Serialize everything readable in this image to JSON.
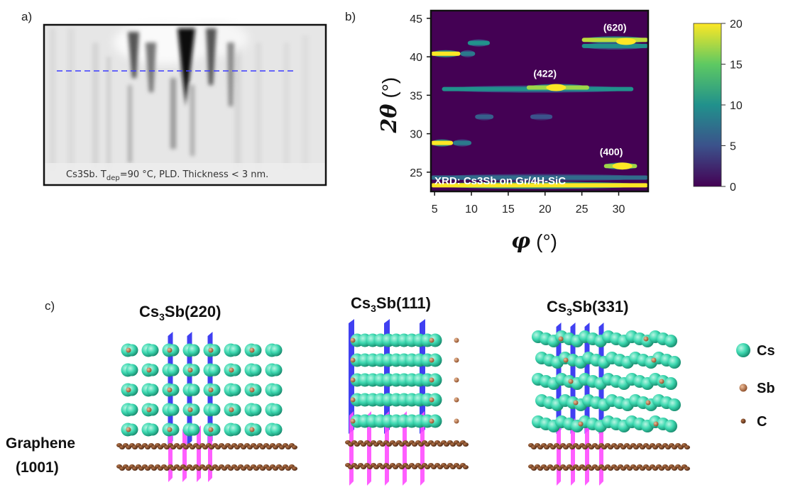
{
  "panels": {
    "a": {
      "label": "a)",
      "caption_main": "Cs3Sb. T",
      "caption_sub": "dep",
      "caption_rest": "=90 °C, PLD. Thickness < 3 nm."
    },
    "b": {
      "label": "b)"
    },
    "c": {
      "label": "c)"
    }
  },
  "chart_data": {
    "type": "heatmap",
    "title": "XRD: Cs3Sb on Gr/4H-SiC",
    "xlabel": "φ",
    "xunit": "(°)",
    "ylabel": "2θ",
    "yunit": "(°)",
    "xlim": [
      4.5,
      34
    ],
    "ylim": [
      22.5,
      46
    ],
    "xticks": [
      5,
      10,
      15,
      20,
      25,
      30
    ],
    "yticks": [
      25,
      30,
      35,
      40,
      45
    ],
    "colorbar": {
      "min": 0,
      "max": 20,
      "ticks": [
        0,
        5,
        10,
        15,
        20
      ],
      "colormap": "viridis"
    },
    "peaks": [
      {
        "label": "(620)",
        "phi": 31,
        "two_theta": 42,
        "intensity": 20
      },
      {
        "label": "(422)",
        "phi": 21.5,
        "two_theta": 36,
        "intensity": 20
      },
      {
        "label": "(400)",
        "phi": 30.5,
        "two_theta": 25.8,
        "intensity": 20
      }
    ],
    "features": [
      {
        "phi_min": 4.5,
        "phi_max": 8.5,
        "two_theta": 40.4,
        "intensity": 20
      },
      {
        "phi_min": 8.5,
        "phi_max": 10.5,
        "two_theta": 40.4,
        "intensity": 8
      },
      {
        "phi_min": 9.5,
        "phi_max": 12.5,
        "two_theta": 41.8,
        "intensity": 10
      },
      {
        "phi_min": 6,
        "phi_max": 32,
        "two_theta": 35.8,
        "intensity": 10
      },
      {
        "phi_min": 17.5,
        "phi_max": 26,
        "two_theta": 36,
        "intensity": 17
      },
      {
        "phi_min": 10.5,
        "phi_max": 13,
        "two_theta": 32.2,
        "intensity": 6
      },
      {
        "phi_min": 18,
        "phi_max": 21,
        "two_theta": 32.2,
        "intensity": 5
      },
      {
        "phi_min": 4.5,
        "phi_max": 7.5,
        "two_theta": 28.8,
        "intensity": 20
      },
      {
        "phi_min": 7.5,
        "phi_max": 10,
        "two_theta": 28.8,
        "intensity": 8
      },
      {
        "phi_min": 28,
        "phi_max": 32.5,
        "two_theta": 25.8,
        "intensity": 17
      },
      {
        "phi_min": 4.5,
        "phi_max": 34,
        "two_theta": 23.3,
        "intensity": 20
      },
      {
        "phi_min": 4.5,
        "phi_max": 34,
        "two_theta": 24.3,
        "intensity": 7
      },
      {
        "phi_min": 25,
        "phi_max": 34,
        "two_theta": 42.2,
        "intensity": 18
      },
      {
        "phi_min": 25,
        "phi_max": 34,
        "two_theta": 41.4,
        "intensity": 10
      }
    ]
  },
  "structures": {
    "items": [
      {
        "formula": "Cs",
        "sub": "3",
        "rest": "Sb(220)"
      },
      {
        "formula": "Cs",
        "sub": "3",
        "rest": "Sb(111)"
      },
      {
        "formula": "Cs",
        "sub": "3",
        "rest": "Sb(331)"
      }
    ],
    "substrate_line1": "Graphene",
    "substrate_line2": "(1001)",
    "legend": [
      {
        "label": "Cs",
        "color": "#3ed9b1"
      },
      {
        "label": "Sb",
        "color": "#c07a4a"
      },
      {
        "label": "C",
        "color": "#8a4a25"
      }
    ]
  }
}
